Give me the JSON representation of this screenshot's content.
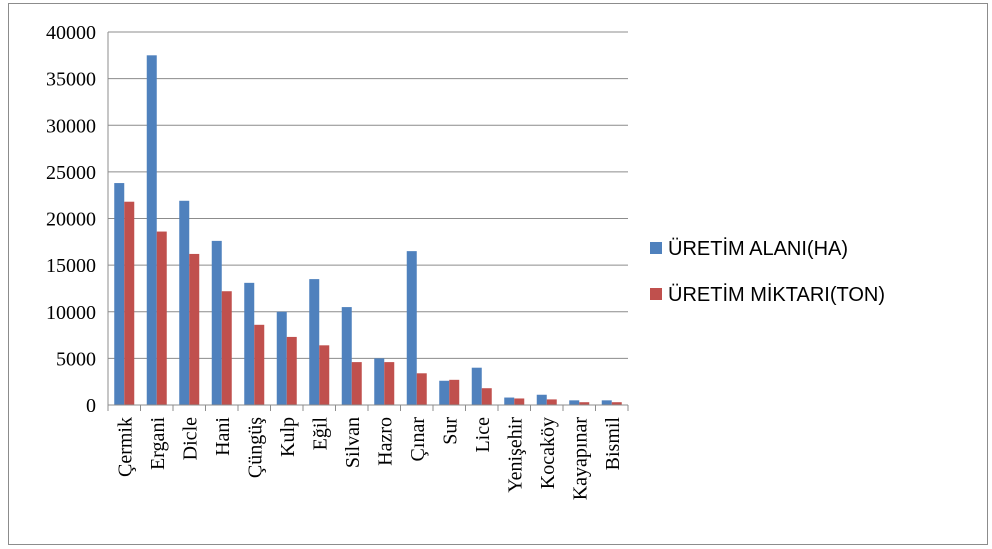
{
  "chart_data": {
    "type": "bar",
    "title": "",
    "xlabel": "",
    "ylabel": "",
    "ylim": [
      0,
      40000
    ],
    "yticks": [
      0,
      5000,
      10000,
      15000,
      20000,
      25000,
      30000,
      35000,
      40000
    ],
    "grid": true,
    "legend_position": "right",
    "categories": [
      "Çermik",
      "Ergani",
      "Dicle",
      "Hani",
      "Çüngüş",
      "Kulp",
      "Eğil",
      "Silvan",
      "Hazro",
      "Çınar",
      "Sur",
      "Lice",
      "Yenişehir",
      "Kocaköy",
      "Kayapınar",
      "Bismil"
    ],
    "series": [
      {
        "name": "ÜRETİM ALANI(HA)",
        "color": "#4f81bd",
        "values": [
          23800,
          37500,
          21900,
          17600,
          13100,
          10000,
          13500,
          10500,
          5000,
          16500,
          2600,
          4000,
          800,
          1100,
          500,
          500
        ]
      },
      {
        "name": "ÜRETİM MİKTARI(TON)",
        "color": "#c0504d",
        "values": [
          21800,
          18600,
          16200,
          12200,
          8600,
          7300,
          6400,
          4600,
          4600,
          3400,
          2700,
          1800,
          700,
          600,
          300,
          300
        ]
      }
    ]
  }
}
